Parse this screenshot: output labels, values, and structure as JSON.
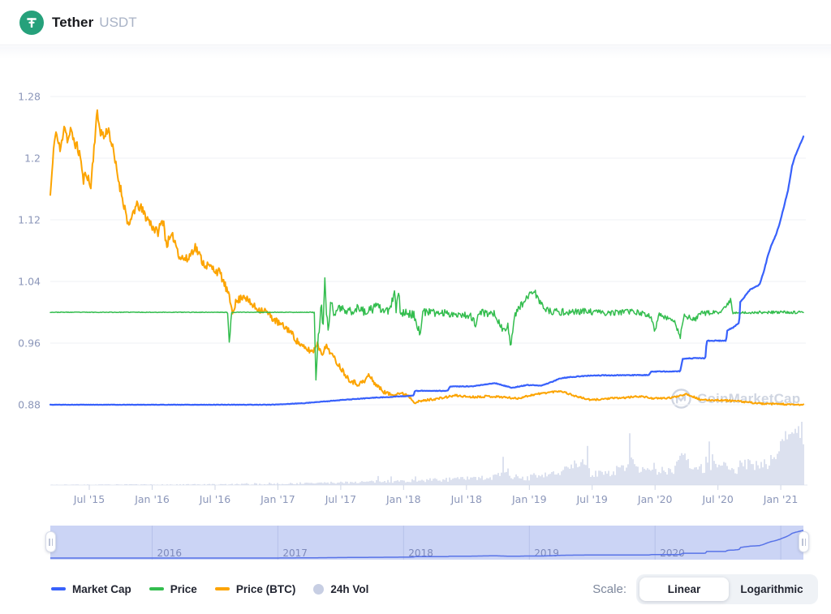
{
  "header": {
    "coin_name": "Tether",
    "coin_symbol": "USDT"
  },
  "watermark": {
    "text": "CoinMarketCap"
  },
  "legend": {
    "items": [
      {
        "label": "Market Cap",
        "marker": "line",
        "color": "#3861fb"
      },
      {
        "label": "Price",
        "marker": "line",
        "color": "#33bd4e"
      },
      {
        "label": "Price (BTC)",
        "marker": "line",
        "color": "#fca400"
      },
      {
        "label": "24h Vol",
        "marker": "circle",
        "color": "#c7cee3"
      }
    ]
  },
  "scale": {
    "label": "Scale:",
    "options": [
      "Linear",
      "Logarithmic"
    ],
    "selected": "Linear"
  },
  "chart_data": {
    "type": "line",
    "title": "Tether USDT price chart (2015 - 2021)",
    "x_range": [
      2015.19,
      2021.18
    ],
    "ylim": [
      0.88,
      1.28
    ],
    "grid": true,
    "legend_position": "bottom",
    "y_axis": {
      "ticks": [
        {
          "value": 0.88,
          "label": "0.88"
        },
        {
          "value": 0.96,
          "label": "0.96"
        },
        {
          "value": 1.04,
          "label": "1.04"
        },
        {
          "value": 1.12,
          "label": "1.12"
        },
        {
          "value": 1.2,
          "label": "1.2"
        },
        {
          "value": 1.28,
          "label": "1.28"
        }
      ]
    },
    "x_axis": {
      "ticks": [
        {
          "t": 2015.5,
          "label": "Jul '15"
        },
        {
          "t": 2016.0,
          "label": "Jan '16"
        },
        {
          "t": 2016.5,
          "label": "Jul '16"
        },
        {
          "t": 2017.0,
          "label": "Jan '17"
        },
        {
          "t": 2017.5,
          "label": "Jul '17"
        },
        {
          "t": 2018.0,
          "label": "Jan '18"
        },
        {
          "t": 2018.5,
          "label": "Jul '18"
        },
        {
          "t": 2019.0,
          "label": "Jan '19"
        },
        {
          "t": 2019.5,
          "label": "Jul '19"
        },
        {
          "t": 2020.0,
          "label": "Jan '20"
        },
        {
          "t": 2020.5,
          "label": "Jul '20"
        },
        {
          "t": 2021.0,
          "label": "Jan '21"
        }
      ]
    },
    "series": [
      {
        "name": "Price (BTC)",
        "data_name": "price-btc-line",
        "color": "#fca400",
        "stroke_width": 2,
        "seed": 11,
        "keypoints": [
          [
            2015.19,
            1.152
          ],
          [
            2015.23,
            1.237
          ],
          [
            2015.27,
            1.208
          ],
          [
            2015.3,
            1.245
          ],
          [
            2015.33,
            1.222
          ],
          [
            2015.35,
            1.235
          ],
          [
            2015.43,
            1.203
          ],
          [
            2015.45,
            1.17
          ],
          [
            2015.48,
            1.182
          ],
          [
            2015.51,
            1.16
          ],
          [
            2015.56,
            1.258
          ],
          [
            2015.59,
            1.235
          ],
          [
            2015.62,
            1.227
          ],
          [
            2015.65,
            1.24
          ],
          [
            2015.68,
            1.217
          ],
          [
            2015.73,
            1.174
          ],
          [
            2015.76,
            1.152
          ],
          [
            2015.8,
            1.122
          ],
          [
            2015.82,
            1.108
          ],
          [
            2015.85,
            1.132
          ],
          [
            2015.89,
            1.139
          ],
          [
            2016.04,
            1.103
          ],
          [
            2016.09,
            1.121
          ],
          [
            2016.11,
            1.089
          ],
          [
            2016.17,
            1.098
          ],
          [
            2016.22,
            1.072
          ],
          [
            2016.28,
            1.068
          ],
          [
            2016.34,
            1.086
          ],
          [
            2016.41,
            1.063
          ],
          [
            2016.47,
            1.058
          ],
          [
            2016.54,
            1.051
          ],
          [
            2016.6,
            1.026
          ],
          [
            2016.64,
            1.002
          ],
          [
            2016.66,
            1.011
          ],
          [
            2016.73,
            1.023
          ],
          [
            2016.77,
            1.013
          ],
          [
            2016.83,
            1.005
          ],
          [
            2016.9,
            1.002
          ],
          [
            2016.96,
            0.992
          ],
          [
            2017.02,
            0.984
          ],
          [
            2017.09,
            0.977
          ],
          [
            2017.15,
            0.963
          ],
          [
            2017.21,
            0.953
          ],
          [
            2017.28,
            0.949
          ],
          [
            2017.31,
            0.96
          ],
          [
            2017.35,
            0.947
          ],
          [
            2017.39,
            0.956
          ],
          [
            2017.44,
            0.942
          ],
          [
            2017.5,
            0.928
          ],
          [
            2017.56,
            0.914
          ],
          [
            2017.63,
            0.907
          ],
          [
            2017.69,
            0.91
          ],
          [
            2017.72,
            0.919
          ],
          [
            2017.77,
            0.908
          ],
          [
            2017.84,
            0.897
          ],
          [
            2017.9,
            0.893
          ],
          [
            2017.96,
            0.895
          ],
          [
            2018.03,
            0.893
          ],
          [
            2018.09,
            0.883
          ],
          [
            2018.15,
            0.885
          ],
          [
            2018.22,
            0.887
          ],
          [
            2018.28,
            0.888
          ],
          [
            2018.41,
            0.892
          ],
          [
            2018.54,
            0.89
          ],
          [
            2018.67,
            0.891
          ],
          [
            2018.79,
            0.89
          ],
          [
            2018.9,
            0.888
          ],
          [
            2019.03,
            0.893
          ],
          [
            2019.15,
            0.896
          ],
          [
            2019.25,
            0.898
          ],
          [
            2019.37,
            0.891
          ],
          [
            2019.49,
            0.886
          ],
          [
            2019.62,
            0.888
          ],
          [
            2019.75,
            0.889
          ],
          [
            2019.88,
            0.891
          ],
          [
            2020.0,
            0.888
          ],
          [
            2020.13,
            0.889
          ],
          [
            2020.22,
            0.893
          ],
          [
            2020.25,
            0.894
          ],
          [
            2020.31,
            0.89
          ],
          [
            2020.37,
            0.886
          ],
          [
            2020.5,
            0.886
          ],
          [
            2020.63,
            0.885
          ],
          [
            2020.75,
            0.883
          ],
          [
            2020.88,
            0.881
          ],
          [
            2021.0,
            0.881
          ],
          [
            2021.08,
            0.88
          ],
          [
            2021.18,
            0.88
          ]
        ],
        "noise": [
          [
            2015.19,
            0.0075
          ],
          [
            2016.0,
            0.007
          ],
          [
            2016.8,
            0.005
          ],
          [
            2017.6,
            0.0035
          ],
          [
            2018.1,
            0.0015
          ],
          [
            2019.0,
            0.0012
          ],
          [
            2021.18,
            0.001
          ]
        ]
      },
      {
        "name": "Price",
        "data_name": "price-line",
        "color": "#33bd4e",
        "stroke_width": 1.5,
        "seed": 23,
        "keypoints": [
          [
            2015.19,
            1.0
          ],
          [
            2016.6,
            1.0
          ],
          [
            2016.615,
            0.957
          ],
          [
            2016.63,
            1.0
          ],
          [
            2017.29,
            1.0
          ],
          [
            2017.302,
            0.911
          ],
          [
            2017.315,
            0.955
          ],
          [
            2017.33,
            0.975
          ],
          [
            2017.345,
            1.005
          ],
          [
            2017.36,
            0.985
          ],
          [
            2017.375,
            1.046
          ],
          [
            2017.385,
            1.0
          ],
          [
            2017.4,
            0.978
          ],
          [
            2017.42,
            1.012
          ],
          [
            2017.45,
            0.998
          ],
          [
            2017.49,
            1.006
          ],
          [
            2017.55,
            1.0
          ],
          [
            2017.63,
            1.005
          ],
          [
            2017.71,
            1.0
          ],
          [
            2017.78,
            1.007
          ],
          [
            2017.88,
            1.0
          ],
          [
            2017.93,
            1.025
          ],
          [
            2017.94,
            1.0
          ],
          [
            2017.96,
            1.028
          ],
          [
            2017.975,
            1.0
          ],
          [
            2018.08,
            0.997
          ],
          [
            2018.13,
            0.972
          ],
          [
            2018.15,
            1.0
          ],
          [
            2018.33,
            0.999
          ],
          [
            2018.53,
            0.996
          ],
          [
            2018.58,
            0.983
          ],
          [
            2018.6,
            1.0
          ],
          [
            2018.73,
            0.998
          ],
          [
            2018.79,
            0.975
          ],
          [
            2018.83,
            0.982
          ],
          [
            2018.85,
            0.955
          ],
          [
            2018.88,
            0.995
          ],
          [
            2018.93,
            1.008
          ],
          [
            2018.98,
            1.02
          ],
          [
            2019.02,
            1.028
          ],
          [
            2019.06,
            1.022
          ],
          [
            2019.11,
            1.005
          ],
          [
            2019.18,
            1.0
          ],
          [
            2019.43,
            1.001
          ],
          [
            2019.63,
            0.999
          ],
          [
            2019.83,
            1.001
          ],
          [
            2019.97,
            0.995
          ],
          [
            2020.0,
            0.974
          ],
          [
            2020.03,
            0.997
          ],
          [
            2020.15,
            0.99
          ],
          [
            2020.2,
            0.968
          ],
          [
            2020.23,
            0.996
          ],
          [
            2020.31,
            0.99
          ],
          [
            2020.38,
            0.999
          ],
          [
            2020.53,
            1.0
          ],
          [
            2020.6,
            1.016
          ],
          [
            2020.62,
            0.999
          ],
          [
            2020.83,
            1.0
          ],
          [
            2021.18,
            1.0
          ]
        ],
        "noise": [
          [
            2015.19,
            0.0004
          ],
          [
            2017.28,
            0.0004
          ],
          [
            2017.33,
            0.009
          ],
          [
            2017.58,
            0.006
          ],
          [
            2017.98,
            0.0055
          ],
          [
            2018.43,
            0.0045
          ],
          [
            2019.13,
            0.005
          ],
          [
            2019.63,
            0.0035
          ],
          [
            2020.38,
            0.0035
          ],
          [
            2020.73,
            0.0018
          ],
          [
            2021.18,
            0.0018
          ]
        ]
      },
      {
        "name": "Market Cap",
        "data_name": "market-cap-line",
        "color": "#3861fb",
        "stroke_width": 2.2,
        "seed": 5,
        "keypoints": [
          [
            2015.19,
            0.88
          ],
          [
            2016.95,
            0.88
          ],
          [
            2017.2,
            0.882
          ],
          [
            2017.5,
            0.886
          ],
          [
            2017.75,
            0.889
          ],
          [
            2018.0,
            0.891
          ],
          [
            2018.08,
            0.892
          ],
          [
            2018.09,
            0.898
          ],
          [
            2018.35,
            0.898
          ],
          [
            2018.37,
            0.9035
          ],
          [
            2018.55,
            0.904
          ],
          [
            2018.65,
            0.9065
          ],
          [
            2018.73,
            0.908
          ],
          [
            2018.86,
            0.902
          ],
          [
            2018.98,
            0.9055
          ],
          [
            2019.1,
            0.905
          ],
          [
            2019.17,
            0.909
          ],
          [
            2019.25,
            0.9145
          ],
          [
            2019.33,
            0.916
          ],
          [
            2019.5,
            0.918
          ],
          [
            2019.95,
            0.9185
          ],
          [
            2019.97,
            0.923
          ],
          [
            2020.2,
            0.9235
          ],
          [
            2020.22,
            0.94
          ],
          [
            2020.4,
            0.9405
          ],
          [
            2020.41,
            0.963
          ],
          [
            2020.565,
            0.963
          ],
          [
            2020.575,
            0.977
          ],
          [
            2020.62,
            0.98
          ],
          [
            2020.67,
            0.987
          ],
          [
            2020.675,
            1.013
          ],
          [
            2020.7,
            1.018
          ],
          [
            2020.76,
            1.03
          ],
          [
            2020.8,
            1.033
          ],
          [
            2020.83,
            1.036
          ],
          [
            2020.86,
            1.05
          ],
          [
            2020.9,
            1.075
          ],
          [
            2020.92,
            1.085
          ],
          [
            2020.96,
            1.1
          ],
          [
            2020.99,
            1.115
          ],
          [
            2021.03,
            1.14
          ],
          [
            2021.06,
            1.16
          ],
          [
            2021.09,
            1.19
          ],
          [
            2021.12,
            1.205
          ],
          [
            2021.14,
            1.213
          ],
          [
            2021.18,
            1.228
          ]
        ],
        "noise": [
          [
            2015.19,
            0.0002
          ],
          [
            2018.0,
            0.0004
          ],
          [
            2021.18,
            0.0006
          ]
        ]
      }
    ],
    "volume": {
      "name": "24h Vol",
      "data_name": "volume-bars",
      "color": "#cdd4e8",
      "seed": 7,
      "keypoints": [
        [
          2015.19,
          0.3
        ],
        [
          2016.3,
          0.5
        ],
        [
          2016.8,
          1
        ],
        [
          2017.2,
          2
        ],
        [
          2017.6,
          3.5
        ],
        [
          2018.0,
          5
        ],
        [
          2018.4,
          7
        ],
        [
          2018.7,
          9
        ],
        [
          2018.8,
          16
        ],
        [
          2018.85,
          10
        ],
        [
          2019.0,
          9
        ],
        [
          2019.2,
          13
        ],
        [
          2019.44,
          28
        ],
        [
          2019.48,
          15
        ],
        [
          2019.6,
          13
        ],
        [
          2019.76,
          22
        ],
        [
          2019.82,
          38
        ],
        [
          2019.87,
          18
        ],
        [
          2020.0,
          15
        ],
        [
          2020.15,
          20
        ],
        [
          2020.22,
          44
        ],
        [
          2020.27,
          26
        ],
        [
          2020.37,
          20
        ],
        [
          2020.5,
          23
        ],
        [
          2020.62,
          19
        ],
        [
          2020.72,
          25
        ],
        [
          2020.82,
          28
        ],
        [
          2020.9,
          27
        ],
        [
          2020.98,
          38
        ],
        [
          2021.02,
          55
        ],
        [
          2021.06,
          68
        ],
        [
          2021.09,
          58
        ],
        [
          2021.13,
          70
        ],
        [
          2021.16,
          60
        ],
        [
          2021.18,
          42
        ]
      ],
      "noise": [
        [
          2015.19,
          0.3
        ],
        [
          2017.0,
          1
        ],
        [
          2018.0,
          2
        ],
        [
          2019.0,
          4
        ],
        [
          2020.0,
          6
        ],
        [
          2021.18,
          10
        ]
      ]
    },
    "navigator": {
      "year_lines": [
        2016,
        2017,
        2018,
        2019,
        2020,
        2021
      ],
      "year_labels": [
        "2016",
        "2017",
        "2018",
        "2019",
        "2020"
      ],
      "selection": [
        2015.19,
        2021.18
      ]
    }
  }
}
